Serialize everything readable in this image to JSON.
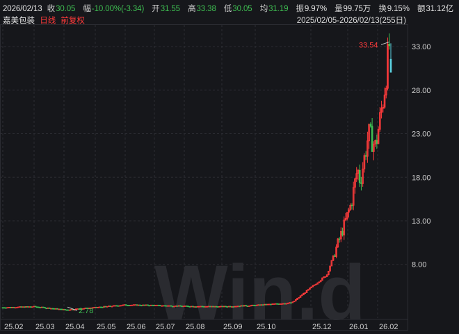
{
  "header": {
    "date": "2026/02/13",
    "close_label": "收",
    "close": "30.05",
    "change_label": "幅",
    "change": "-10.00%(-3.34)",
    "open_label": "开",
    "open": "31.55",
    "high_label": "高",
    "high": "33.38",
    "low_label": "低",
    "low": "30.05",
    "avg_label": "均",
    "avg": "31.19",
    "amplitude_label": "振",
    "amplitude": "9.97%",
    "volume_label": "量",
    "volume": "99.75万",
    "turnover_label": "换",
    "turnover": "9.15%",
    "amount_label": "额",
    "amount": "31.12亿"
  },
  "subheader": {
    "name": "嘉美包装",
    "period": "日线",
    "adjust": "前复权",
    "range": "2025/02/05-2026/02/13(255日)"
  },
  "watermark": "Win.d",
  "colors": {
    "up": "#ff3b3b",
    "down": "#3fbf52",
    "flat": "#cfcfcf",
    "doji_down": "#5bd1e0",
    "background": "#16171b",
    "grid": "#2c2d33"
  },
  "chart_data": {
    "type": "candlestick",
    "x_ticks": [
      "25.02",
      "25.03",
      "25.04",
      "25.05",
      "25.06",
      "25.07",
      "25.08",
      "25.09",
      "25.10",
      "25.12",
      "26.01",
      "26.02"
    ],
    "y_ticks": [
      "33.00",
      "28.00",
      "23.00",
      "18.00",
      "13.00",
      "8.00"
    ],
    "ylim": [
      2.0,
      35.0
    ],
    "max_annotation": "33.54",
    "min_annotation": "2.78",
    "price_series": [
      [
        "25.02",
        3.05
      ],
      [
        "25.03",
        3.15
      ],
      [
        "25.04",
        2.78
      ],
      [
        "25.05",
        3.05
      ],
      [
        "25.06",
        3.35
      ],
      [
        "25.07",
        3.3
      ],
      [
        "25.08",
        3.2
      ],
      [
        "25.09",
        3.15
      ],
      [
        "25.10",
        3.3
      ],
      [
        "25.11",
        3.6
      ],
      [
        "25.12",
        6.8
      ],
      [
        "25.12b",
        12.5
      ],
      [
        "25.12c",
        15.0
      ],
      [
        "26.01",
        19.0
      ],
      [
        "26.01b",
        17.5
      ],
      [
        "26.01c",
        23.0
      ],
      [
        "26.01d",
        21.5
      ],
      [
        "26.02",
        27.5
      ],
      [
        "26.02b",
        33.38
      ],
      [
        "26.02c",
        30.05
      ]
    ]
  }
}
